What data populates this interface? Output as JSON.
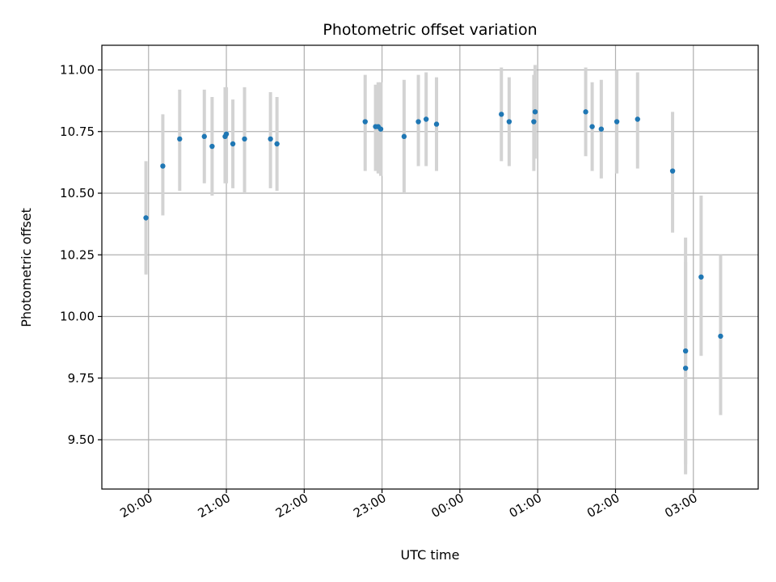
{
  "chart_data": {
    "type": "scatter",
    "title": "Photometric offset variation",
    "xlabel": "UTC time",
    "ylabel": "Photometric offset",
    "x_tick_labels": [
      "20:00",
      "21:00",
      "22:00",
      "23:00",
      "00:00",
      "01:00",
      "02:00",
      "03:00"
    ],
    "x_tick_times": [
      "19:58",
      "20:58",
      "21:58",
      "22:58",
      "23:58",
      "00:58",
      "01:58",
      "02:58"
    ],
    "y_tick_values": [
      9.5,
      9.75,
      10.0,
      10.25,
      10.5,
      10.75,
      11.0
    ],
    "y_tick_labels": [
      "9.50",
      "9.75",
      "10.00",
      "10.25",
      "10.50",
      "10.75",
      "11.00"
    ],
    "xlim": [
      "19:22",
      "03:48"
    ],
    "ylim": [
      9.3,
      11.1
    ],
    "grid": true,
    "colors": {
      "point": "#1f77b4",
      "errorbar": "#d3d3d3",
      "grid": "#b0b0b0"
    },
    "points": [
      {
        "x": "19:56",
        "y": 10.4,
        "lo": 10.17,
        "hi": 10.63
      },
      {
        "x": "20:09",
        "y": 10.61,
        "lo": 10.41,
        "hi": 10.82
      },
      {
        "x": "20:22",
        "y": 10.72,
        "lo": 10.51,
        "hi": 10.92
      },
      {
        "x": "20:41",
        "y": 10.73,
        "lo": 10.54,
        "hi": 10.92
      },
      {
        "x": "20:47",
        "y": 10.69,
        "lo": 10.49,
        "hi": 10.89
      },
      {
        "x": "20:57",
        "y": 10.73,
        "lo": 10.54,
        "hi": 10.93
      },
      {
        "x": "20:58",
        "y": 10.74,
        "lo": 10.54,
        "hi": 10.93
      },
      {
        "x": "21:03",
        "y": 10.7,
        "lo": 10.52,
        "hi": 10.88
      },
      {
        "x": "21:12",
        "y": 10.72,
        "lo": 10.5,
        "hi": 10.93
      },
      {
        "x": "21:32",
        "y": 10.72,
        "lo": 10.52,
        "hi": 10.91
      },
      {
        "x": "21:37",
        "y": 10.7,
        "lo": 10.51,
        "hi": 10.89
      },
      {
        "x": "22:45",
        "y": 10.79,
        "lo": 10.59,
        "hi": 10.98
      },
      {
        "x": "22:53",
        "y": 10.77,
        "lo": 10.59,
        "hi": 10.94
      },
      {
        "x": "22:55",
        "y": 10.77,
        "lo": 10.58,
        "hi": 10.95
      },
      {
        "x": "22:57",
        "y": 10.76,
        "lo": 10.57,
        "hi": 10.95
      },
      {
        "x": "23:15",
        "y": 10.73,
        "lo": 10.5,
        "hi": 10.96
      },
      {
        "x": "23:26",
        "y": 10.79,
        "lo": 10.61,
        "hi": 10.98
      },
      {
        "x": "23:32",
        "y": 10.8,
        "lo": 10.61,
        "hi": 10.99
      },
      {
        "x": "23:40",
        "y": 10.78,
        "lo": 10.59,
        "hi": 10.97
      },
      {
        "x": "00:30",
        "y": 10.82,
        "lo": 10.63,
        "hi": 11.01
      },
      {
        "x": "00:36",
        "y": 10.79,
        "lo": 10.61,
        "hi": 10.97
      },
      {
        "x": "00:55",
        "y": 10.79,
        "lo": 10.59,
        "hi": 10.98
      },
      {
        "x": "00:56",
        "y": 10.83,
        "lo": 10.64,
        "hi": 11.02
      },
      {
        "x": "01:35",
        "y": 10.83,
        "lo": 10.65,
        "hi": 11.01
      },
      {
        "x": "01:40",
        "y": 10.77,
        "lo": 10.59,
        "hi": 10.95
      },
      {
        "x": "01:47",
        "y": 10.76,
        "lo": 10.56,
        "hi": 10.96
      },
      {
        "x": "01:59",
        "y": 10.79,
        "lo": 10.58,
        "hi": 11.0
      },
      {
        "x": "02:15",
        "y": 10.8,
        "lo": 10.6,
        "hi": 10.99
      },
      {
        "x": "02:42",
        "y": 10.59,
        "lo": 10.34,
        "hi": 10.83
      },
      {
        "x": "02:52",
        "y": 9.86,
        "lo": 9.4,
        "hi": 10.32
      },
      {
        "x": "02:52",
        "y": 9.79,
        "lo": 9.36,
        "hi": 10.22
      },
      {
        "x": "03:04",
        "y": 10.16,
        "lo": 9.84,
        "hi": 10.49
      },
      {
        "x": "03:19",
        "y": 9.92,
        "lo": 9.6,
        "hi": 10.25
      }
    ]
  }
}
